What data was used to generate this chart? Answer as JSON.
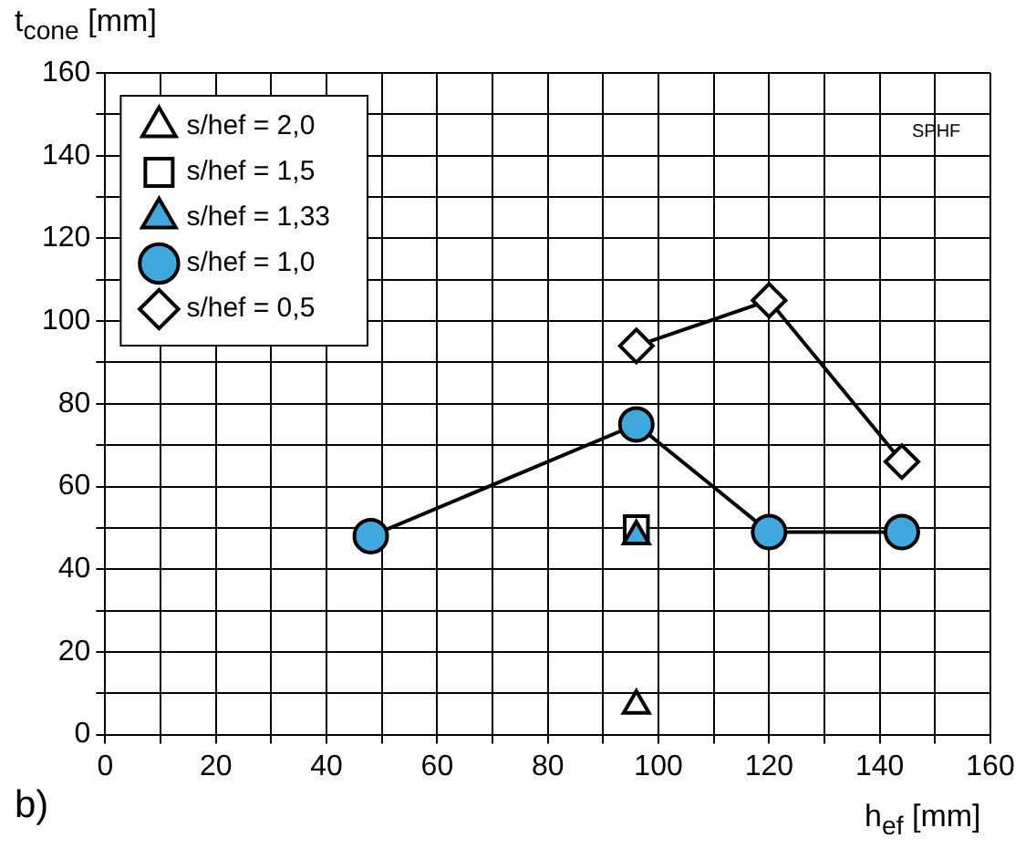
{
  "chart_data": {
    "type": "scatter",
    "xlabel": "h$_{ef}$ [mm]",
    "ylabel": "t$_{cone}$ [mm]",
    "annotations": [
      "SPHF",
      "b)"
    ],
    "xlim": [
      0,
      160
    ],
    "xticks": [
      0,
      {
        "value": 10,
        "label": null
      },
      20,
      {
        "value": 30,
        "label": null
      },
      40,
      {
        "value": 50,
        "label": null
      },
      60,
      {
        "value": 70,
        "label": null
      },
      80,
      {
        "value": 90,
        "label": null
      },
      100,
      {
        "value": 110,
        "label": null
      },
      120,
      {
        "value": 130,
        "label": null
      },
      140,
      {
        "value": 150,
        "label": null
      },
      160
    ],
    "ylim": [
      0,
      160
    ],
    "yticks": [
      0,
      {
        "value": 10,
        "label": null
      },
      20,
      {
        "value": 30,
        "label": null
      },
      40,
      {
        "value": 50,
        "label": null
      },
      60,
      {
        "value": 70,
        "label": null
      },
      80,
      {
        "value": 90,
        "label": null
      },
      100,
      {
        "value": 110,
        "label": null
      },
      120,
      {
        "value": 130,
        "label": null
      },
      140,
      {
        "value": 150,
        "label": null
      },
      160
    ],
    "grid": true,
    "legend": "top left",
    "series": [
      {
        "name": "s/hef = 2,0",
        "type": "scatter",
        "marker": "triangle",
        "color": "#ffffff",
        "x": [
          96
        ],
        "values": [
          7
        ]
      },
      {
        "name": "s/hef = 1,5",
        "type": "scatter",
        "marker": "square",
        "color": "#ffffff",
        "x": [
          96
        ],
        "values": [
          50
        ]
      },
      {
        "name": "s/hef = 1,33",
        "type": "scatter",
        "marker": "triangle",
        "color": "#3fa9dd",
        "x": [
          96
        ],
        "values": [
          48
        ]
      },
      {
        "name": "s/hef = 1,0",
        "type": "line",
        "marker": "circle",
        "color": "#3fa9dd",
        "x": [
          48,
          96,
          120,
          144
        ],
        "values": [
          48,
          75,
          49,
          49
        ]
      },
      {
        "name": "s/hef = 0,5",
        "type": "line",
        "marker": "diamond",
        "color": "#ffffff",
        "x": [
          96,
          120,
          144
        ],
        "values": [
          94,
          105,
          66
        ]
      }
    ]
  }
}
